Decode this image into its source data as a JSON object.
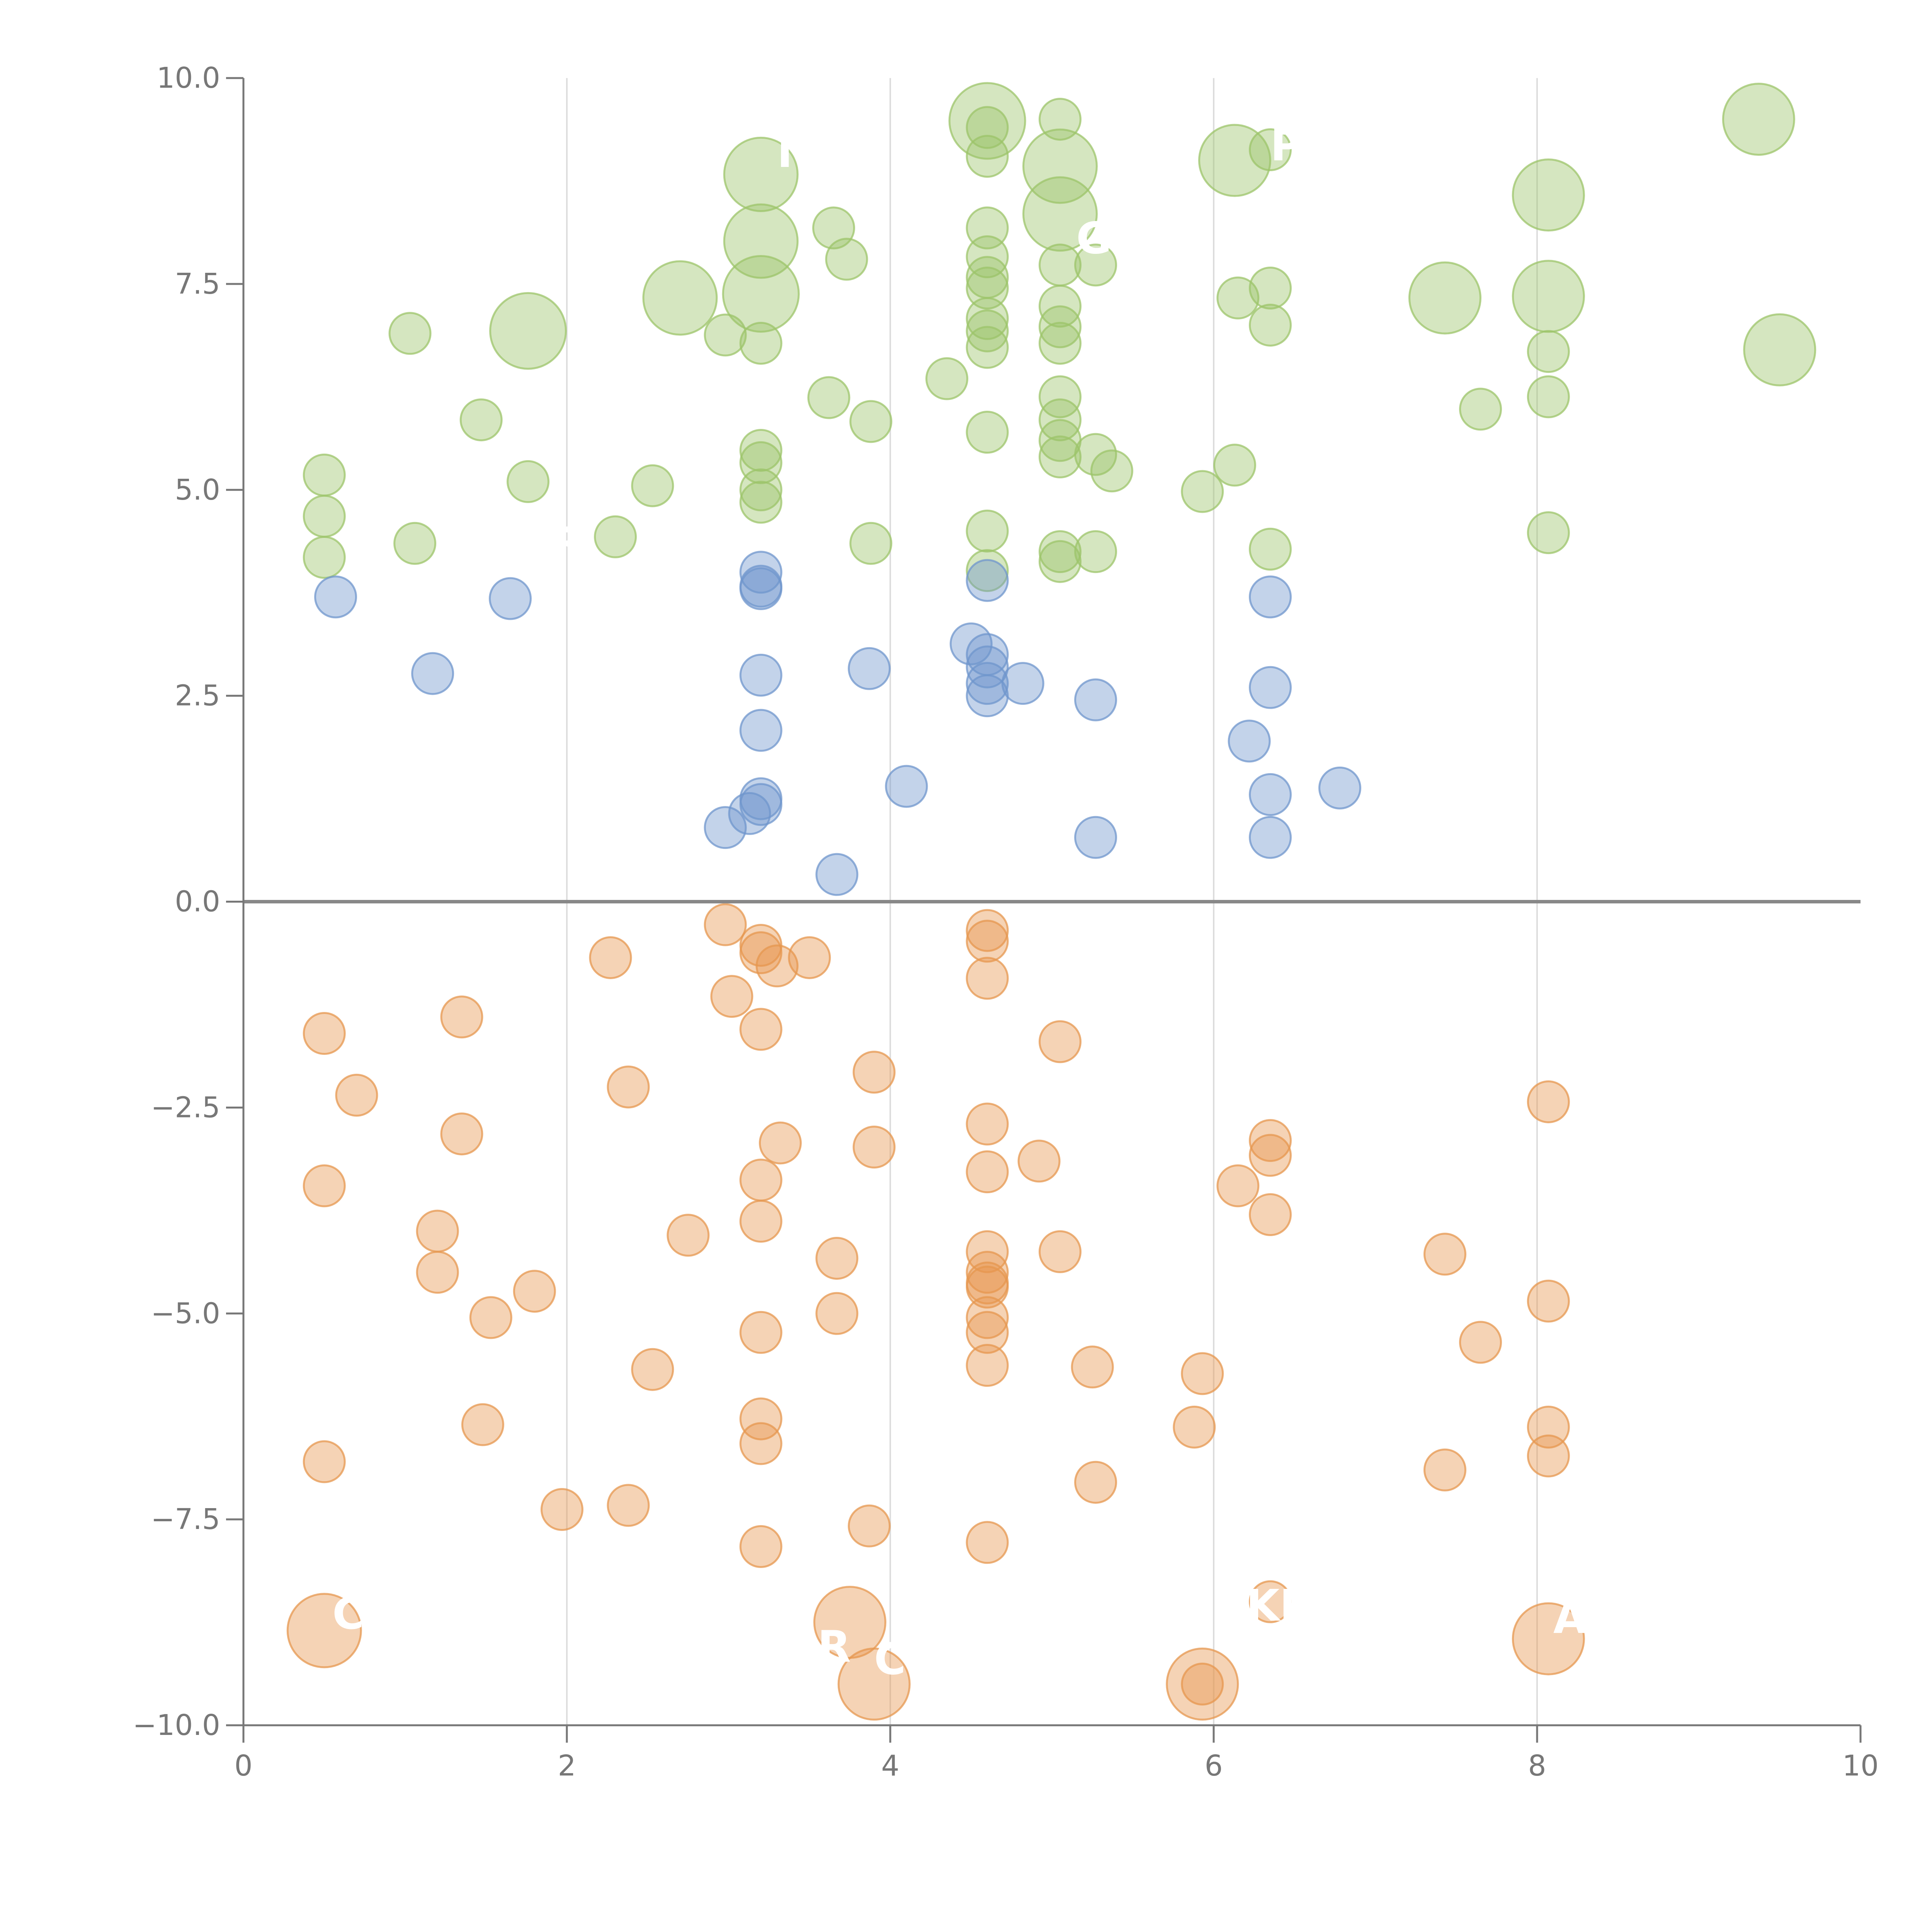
{
  "chart_data": {
    "type": "scatter",
    "title": "",
    "xlabel": "",
    "ylabel": "",
    "xlim": [
      0,
      10
    ],
    "ylim": [
      -10,
      10
    ],
    "x_ticks": [
      "0",
      "2",
      "4",
      "6",
      "8",
      "10"
    ],
    "y_ticks": [
      "10.0",
      "7.5",
      "5.0",
      "2.5",
      "0.0",
      "−2.5",
      "−5.0",
      "−7.5",
      "−10.0"
    ],
    "x_grid": [
      2,
      4,
      6,
      8
    ],
    "zero_line": 0,
    "colors": {
      "green": "#9cc46a",
      "blue": "#6f95cc",
      "orange": "#e6974f",
      "axis": "#777777",
      "grid": "#dddddd"
    },
    "series": [
      {
        "color": "green",
        "points": [
          [
            0.5,
            5.18
          ],
          [
            0.5,
            4.68
          ],
          [
            0.5,
            4.18
          ],
          [
            1.03,
            6.9
          ],
          [
            1.06,
            4.35
          ],
          [
            1.47,
            5.85
          ],
          [
            1.76,
            5.1
          ],
          [
            2.3,
            4.43
          ],
          [
            2.53,
            5.05
          ],
          [
            2.98,
            6.88
          ],
          [
            3.2,
            6.78
          ],
          [
            3.2,
            5.48
          ],
          [
            3.2,
            5.33
          ],
          [
            3.2,
            5.0
          ],
          [
            3.2,
            4.85
          ],
          [
            3.65,
            8.18
          ],
          [
            3.73,
            7.8
          ],
          [
            3.62,
            6.12
          ],
          [
            3.88,
            5.83
          ],
          [
            3.88,
            4.35
          ],
          [
            4.35,
            6.35
          ],
          [
            4.6,
            9.4
          ],
          [
            4.6,
            9.05
          ],
          [
            4.6,
            8.18
          ],
          [
            4.6,
            7.83
          ],
          [
            4.6,
            7.58
          ],
          [
            4.6,
            7.45
          ],
          [
            4.6,
            7.08
          ],
          [
            4.6,
            6.93
          ],
          [
            4.6,
            6.73
          ],
          [
            4.6,
            5.7
          ],
          [
            4.6,
            4.5
          ],
          [
            4.6,
            4.02
          ],
          [
            5.05,
            9.5
          ],
          [
            5.05,
            7.73
          ],
          [
            5.05,
            7.23
          ],
          [
            5.05,
            6.98
          ],
          [
            5.05,
            6.78
          ],
          [
            5.05,
            6.13
          ],
          [
            5.05,
            5.85
          ],
          [
            5.05,
            5.6
          ],
          [
            5.05,
            5.4
          ],
          [
            5.05,
            4.25
          ],
          [
            5.05,
            4.13
          ],
          [
            5.27,
            7.73
          ],
          [
            5.27,
            5.43
          ],
          [
            5.37,
            5.23
          ],
          [
            5.27,
            4.25
          ],
          [
            5.93,
            4.98
          ],
          [
            6.13,
            5.3
          ],
          [
            6.15,
            7.33
          ],
          [
            6.35,
            7.45
          ],
          [
            6.35,
            7.0
          ],
          [
            6.35,
            9.13
          ],
          [
            6.35,
            4.28
          ],
          [
            7.65,
            5.98
          ],
          [
            8.07,
            6.68
          ],
          [
            8.07,
            6.13
          ],
          [
            8.07,
            4.48
          ]
        ],
        "big_points": [
          [
            4.6,
            9.48
          ],
          [
            5.05,
            8.93
          ],
          [
            5.05,
            8.35
          ],
          [
            3.2,
            8.83
          ],
          [
            3.2,
            8.02
          ],
          [
            3.2,
            7.38
          ],
          [
            2.7,
            7.33
          ],
          [
            1.76,
            6.93
          ],
          [
            6.13,
            9.0
          ],
          [
            8.07,
            8.58
          ],
          [
            8.07,
            7.35
          ],
          [
            7.43,
            7.33
          ],
          [
            9.37,
            9.5
          ],
          [
            9.5,
            6.7
          ]
        ]
      },
      {
        "color": "blue",
        "points": [
          [
            0.57,
            3.7
          ],
          [
            1.17,
            2.77
          ],
          [
            1.65,
            3.68
          ],
          [
            3.2,
            4.0
          ],
          [
            3.2,
            3.83
          ],
          [
            3.2,
            3.8
          ],
          [
            3.2,
            2.75
          ],
          [
            3.2,
            2.08
          ],
          [
            3.2,
            1.25
          ],
          [
            3.2,
            1.18
          ],
          [
            3.13,
            1.07
          ],
          [
            2.98,
            0.9
          ],
          [
            3.67,
            0.33
          ],
          [
            3.87,
            2.83
          ],
          [
            4.1,
            1.4
          ],
          [
            4.5,
            3.13
          ],
          [
            4.6,
            3.9
          ],
          [
            4.6,
            3.0
          ],
          [
            4.6,
            2.85
          ],
          [
            4.6,
            2.65
          ],
          [
            4.6,
            2.5
          ],
          [
            4.82,
            2.65
          ],
          [
            5.27,
            2.45
          ],
          [
            5.27,
            0.78
          ],
          [
            6.22,
            1.95
          ],
          [
            6.35,
            3.7
          ],
          [
            6.35,
            2.6
          ],
          [
            6.35,
            1.3
          ],
          [
            6.35,
            0.78
          ],
          [
            6.78,
            1.38
          ]
        ],
        "big_points": []
      },
      {
        "color": "orange",
        "points": [
          [
            0.5,
            -1.6
          ],
          [
            0.7,
            -2.35
          ],
          [
            0.5,
            -3.45
          ],
          [
            0.5,
            -6.8
          ],
          [
            1.2,
            -4.0
          ],
          [
            1.2,
            -4.5
          ],
          [
            1.35,
            -1.4
          ],
          [
            1.35,
            -2.82
          ],
          [
            1.48,
            -6.35
          ],
          [
            1.53,
            -5.05
          ],
          [
            1.8,
            -4.73
          ],
          [
            1.97,
            -7.38
          ],
          [
            2.27,
            -0.68
          ],
          [
            2.38,
            -2.25
          ],
          [
            2.38,
            -7.33
          ],
          [
            2.53,
            -5.68
          ],
          [
            2.75,
            -4.05
          ],
          [
            2.98,
            -0.28
          ],
          [
            3.02,
            -1.15
          ],
          [
            3.2,
            -0.53
          ],
          [
            3.2,
            -0.62
          ],
          [
            3.3,
            -0.78
          ],
          [
            3.5,
            -0.68
          ],
          [
            3.2,
            -1.55
          ],
          [
            3.32,
            -2.93
          ],
          [
            3.2,
            -3.38
          ],
          [
            3.2,
            -3.88
          ],
          [
            3.2,
            -5.23
          ],
          [
            3.2,
            -6.28
          ],
          [
            3.2,
            -6.58
          ],
          [
            3.2,
            -7.83
          ],
          [
            3.67,
            -4.33
          ],
          [
            3.67,
            -5.0
          ],
          [
            3.9,
            -2.07
          ],
          [
            3.9,
            -2.98
          ],
          [
            3.87,
            -7.58
          ],
          [
            4.6,
            -0.35
          ],
          [
            4.6,
            -0.48
          ],
          [
            4.6,
            -0.93
          ],
          [
            4.6,
            -2.7
          ],
          [
            4.6,
            -3.28
          ],
          [
            4.6,
            -4.25
          ],
          [
            4.6,
            -4.5
          ],
          [
            4.6,
            -4.63
          ],
          [
            4.6,
            -4.68
          ],
          [
            4.6,
            -5.05
          ],
          [
            4.6,
            -5.23
          ],
          [
            4.6,
            -5.63
          ],
          [
            4.6,
            -7.78
          ],
          [
            4.92,
            -3.15
          ],
          [
            5.05,
            -1.7
          ],
          [
            5.05,
            -4.25
          ],
          [
            5.25,
            -5.65
          ],
          [
            5.27,
            -7.05
          ],
          [
            5.88,
            -6.38
          ],
          [
            5.93,
            -5.73
          ],
          [
            5.93,
            -9.5
          ],
          [
            6.15,
            -3.45
          ],
          [
            6.35,
            -2.9
          ],
          [
            6.35,
            -3.08
          ],
          [
            6.35,
            -3.8
          ],
          [
            6.35,
            -8.5
          ],
          [
            7.43,
            -4.28
          ],
          [
            7.43,
            -6.9
          ],
          [
            7.65,
            -5.35
          ],
          [
            8.07,
            -2.43
          ],
          [
            8.07,
            -4.85
          ],
          [
            8.07,
            -6.38
          ],
          [
            8.07,
            -6.73
          ]
        ],
        "big_points": [
          [
            0.5,
            -8.85
          ],
          [
            3.75,
            -8.75
          ],
          [
            3.9,
            -9.5
          ],
          [
            5.93,
            -9.5
          ],
          [
            8.07,
            -8.95
          ]
        ]
      }
    ],
    "labels": [
      {
        "text": "M",
        "x": 3.3,
        "y": 9.1,
        "size": "medium"
      },
      {
        "text": "PL",
        "x": 6.35,
        "y": 9.18,
        "size": "medium"
      },
      {
        "text": "G",
        "x": 5.15,
        "y": 8.05,
        "size": "medium"
      },
      {
        "text": "R",
        "x": 1.9,
        "y": 4.35,
        "size": "medium"
      },
      {
        "text": "C",
        "x": 0.55,
        "y": -8.65,
        "size": "medium"
      },
      {
        "text": "R",
        "x": 3.55,
        "y": -9.05,
        "size": "medium"
      },
      {
        "text": "C",
        "x": 3.9,
        "y": -9.2,
        "size": "medium"
      },
      {
        "text": "KR",
        "x": 6.2,
        "y": -8.55,
        "size": "medium"
      },
      {
        "text": "A",
        "x": 8.1,
        "y": -8.7,
        "size": "medium"
      }
    ]
  }
}
